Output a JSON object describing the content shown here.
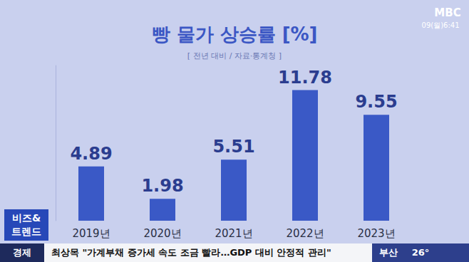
{
  "chart_data": {
    "type": "bar",
    "title": "빵 물가 상승률 [%]",
    "subtitle": "[ 전년 대비 / 자료·통계청 ]",
    "categories": [
      "2019년",
      "2020년",
      "2021년",
      "2022년",
      "2023년"
    ],
    "values": [
      4.89,
      1.98,
      5.51,
      11.78,
      9.55
    ],
    "color": "#3a59c6",
    "ylim": [
      0,
      14
    ],
    "tick_labels": "x",
    "grid": false,
    "data_labels": true,
    "annotations": [
      "MBC",
      "09(월)6:41",
      "비즈&",
      "트렌드",
      "경제",
      "최상목 \"가계부채 증가세 속도 조금 빨라…GDP 대비 안정적 관리\"",
      "부산",
      "26°"
    ]
  }
}
